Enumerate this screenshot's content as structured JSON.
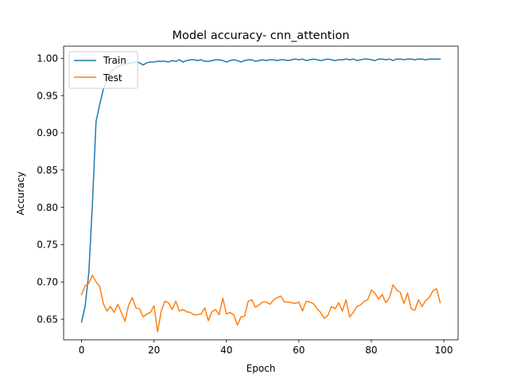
{
  "chart_data": {
    "type": "line",
    "title": "Model accuracy- cnn_attention",
    "xlabel": "Epoch",
    "ylabel": "Accuracy",
    "xlim": [
      -4.95,
      103.95
    ],
    "ylim": [
      0.6223,
      1.0163
    ],
    "xticks": [
      0,
      20,
      40,
      60,
      80,
      100
    ],
    "xtick_labels": [
      "0",
      "20",
      "40",
      "60",
      "80",
      "100"
    ],
    "yticks": [
      0.65,
      0.7,
      0.75,
      0.8,
      0.85,
      0.9,
      0.95,
      1.0
    ],
    "ytick_labels": [
      "0.65",
      "0.70",
      "0.75",
      "0.80",
      "0.85",
      "0.90",
      "0.95",
      "1.00"
    ],
    "grid": false,
    "legend_position": "top-left",
    "x": [
      0,
      1,
      2,
      3,
      4,
      5,
      6,
      7,
      8,
      9,
      10,
      11,
      12,
      13,
      14,
      15,
      16,
      17,
      18,
      19,
      20,
      21,
      22,
      23,
      24,
      25,
      26,
      27,
      28,
      29,
      30,
      31,
      32,
      33,
      34,
      35,
      36,
      37,
      38,
      39,
      40,
      41,
      42,
      43,
      44,
      45,
      46,
      47,
      48,
      49,
      50,
      51,
      52,
      53,
      54,
      55,
      56,
      57,
      58,
      59,
      60,
      61,
      62,
      63,
      64,
      65,
      66,
      67,
      68,
      69,
      70,
      71,
      72,
      73,
      74,
      75,
      76,
      77,
      78,
      79,
      80,
      81,
      82,
      83,
      84,
      85,
      86,
      87,
      88,
      89,
      90,
      91,
      92,
      93,
      94,
      95,
      96,
      97,
      98,
      99
    ],
    "series": [
      {
        "name": "Train",
        "color": "#1f77b4",
        "values": [
          0.646,
          0.668,
          0.712,
          0.805,
          0.915,
          0.938,
          0.958,
          0.972,
          0.981,
          0.986,
          0.989,
          0.991,
          0.992,
          0.993,
          0.994,
          0.995,
          0.994,
          0.991,
          0.994,
          0.995,
          0.995,
          0.996,
          0.996,
          0.996,
          0.995,
          0.997,
          0.996,
          0.998,
          0.995,
          0.997,
          0.998,
          0.998,
          0.997,
          0.998,
          0.996,
          0.996,
          0.997,
          0.998,
          0.998,
          0.997,
          0.995,
          0.997,
          0.998,
          0.997,
          0.995,
          0.997,
          0.998,
          0.998,
          0.996,
          0.997,
          0.998,
          0.997,
          0.998,
          0.998,
          0.997,
          0.998,
          0.998,
          0.997,
          0.998,
          0.999,
          0.998,
          0.999,
          0.997,
          0.998,
          0.999,
          0.998,
          0.997,
          0.998,
          0.999,
          0.998,
          0.997,
          0.998,
          0.998,
          0.999,
          0.998,
          0.999,
          0.997,
          0.998,
          0.999,
          0.999,
          0.998,
          0.997,
          0.999,
          0.999,
          0.998,
          0.999,
          0.997,
          0.999,
          0.999,
          0.998,
          0.999,
          0.999,
          0.998,
          0.999,
          0.999,
          0.998,
          0.999,
          0.999,
          0.999,
          0.999
        ]
      },
      {
        "name": "Test",
        "color": "#ff7f0e",
        "values": [
          0.683,
          0.695,
          0.698,
          0.709,
          0.7,
          0.694,
          0.671,
          0.661,
          0.667,
          0.659,
          0.67,
          0.659,
          0.647,
          0.669,
          0.679,
          0.665,
          0.664,
          0.653,
          0.657,
          0.659,
          0.668,
          0.633,
          0.661,
          0.674,
          0.672,
          0.663,
          0.674,
          0.661,
          0.663,
          0.66,
          0.659,
          0.656,
          0.656,
          0.657,
          0.665,
          0.648,
          0.66,
          0.663,
          0.656,
          0.678,
          0.657,
          0.659,
          0.656,
          0.642,
          0.653,
          0.654,
          0.674,
          0.676,
          0.666,
          0.669,
          0.673,
          0.673,
          0.67,
          0.676,
          0.679,
          0.681,
          0.673,
          0.673,
          0.672,
          0.671,
          0.673,
          0.661,
          0.674,
          0.673,
          0.671,
          0.664,
          0.659,
          0.651,
          0.655,
          0.667,
          0.664,
          0.672,
          0.661,
          0.676,
          0.653,
          0.659,
          0.667,
          0.669,
          0.674,
          0.676,
          0.689,
          0.685,
          0.677,
          0.683,
          0.672,
          0.679,
          0.696,
          0.689,
          0.686,
          0.671,
          0.685,
          0.664,
          0.662,
          0.676,
          0.667,
          0.675,
          0.679,
          0.688,
          0.691,
          0.672
        ]
      }
    ]
  }
}
